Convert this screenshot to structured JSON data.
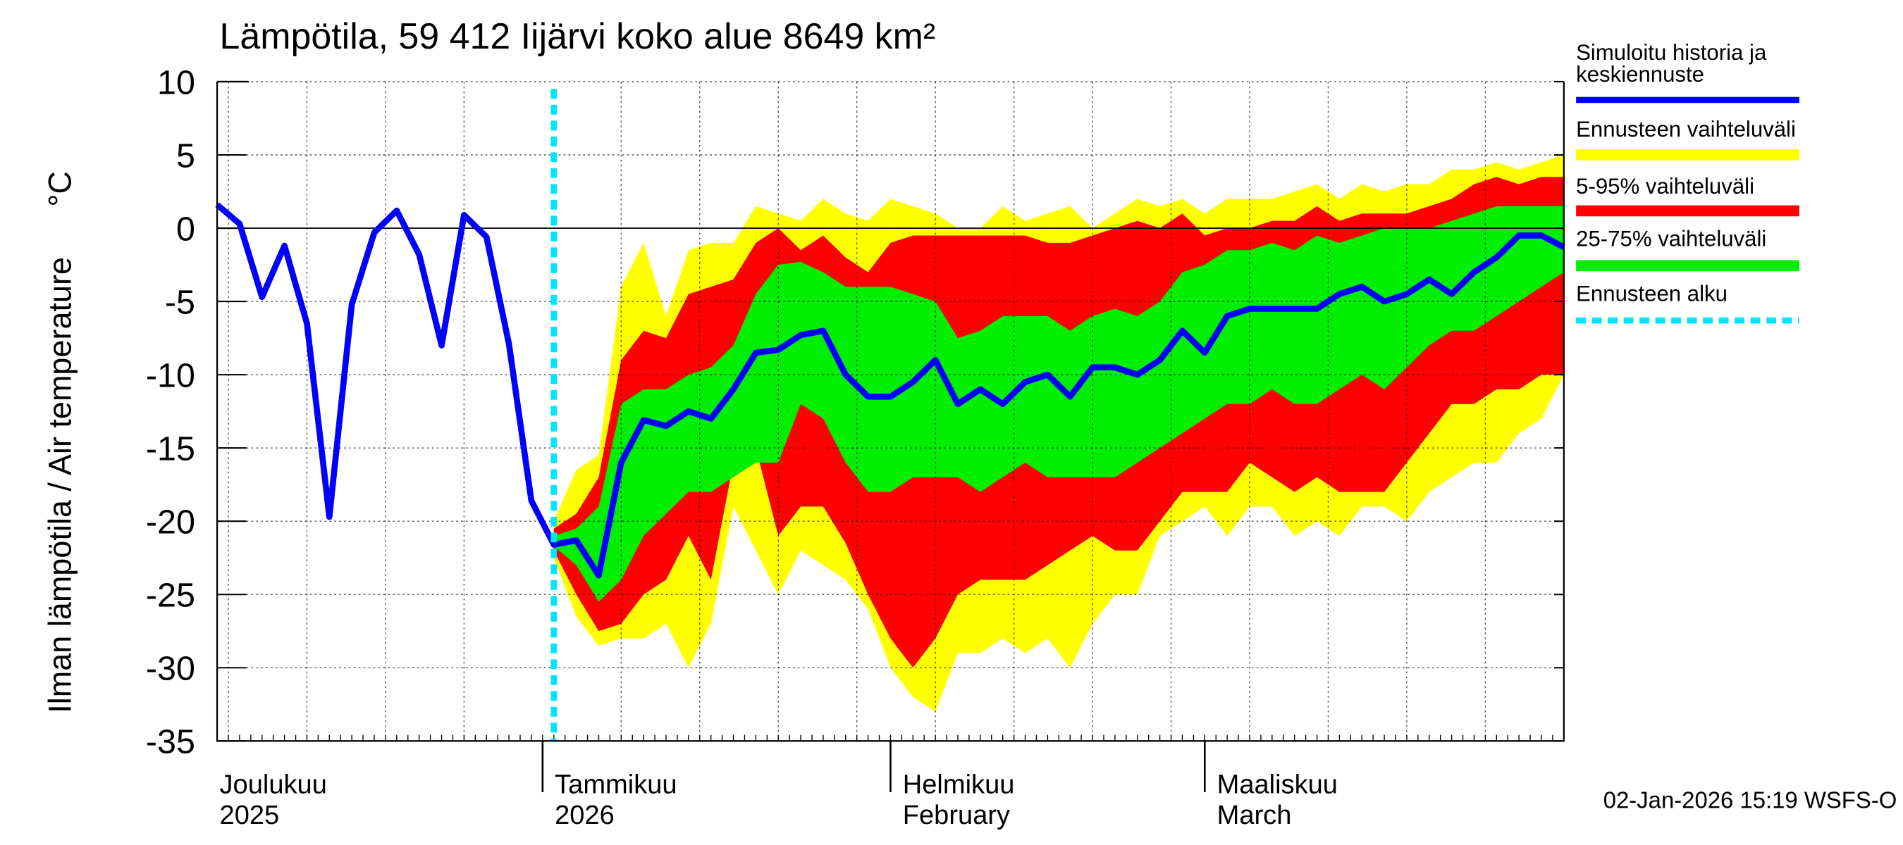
{
  "chart_data": {
    "type": "line",
    "title": "Lämpötila, 59 412 Iijärvi koko alue 8649 km²",
    "ylabel": "Ilman lämpötila / Air temperature",
    "yunit": "°C",
    "x": [
      "2025-12-03",
      "2025-12-05",
      "2025-12-07",
      "2025-12-09",
      "2025-12-11",
      "2025-12-13",
      "2025-12-15",
      "2025-12-17",
      "2025-12-19",
      "2025-12-21",
      "2025-12-23",
      "2025-12-25",
      "2025-12-27",
      "2025-12-29",
      "2025-12-31",
      "2026-01-02",
      "2026-01-04",
      "2026-01-06",
      "2026-01-08",
      "2026-01-10",
      "2026-01-12",
      "2026-01-14",
      "2026-01-16",
      "2026-01-18",
      "2026-01-20",
      "2026-01-22",
      "2026-01-24",
      "2026-01-26",
      "2026-01-28",
      "2026-01-30",
      "2026-02-01",
      "2026-02-03",
      "2026-02-05",
      "2026-02-07",
      "2026-02-09",
      "2026-02-11",
      "2026-02-13",
      "2026-02-15",
      "2026-02-17",
      "2026-02-19",
      "2026-02-21",
      "2026-02-23",
      "2026-02-25",
      "2026-02-27",
      "2026-03-01",
      "2026-03-03",
      "2026-03-05",
      "2026-03-07",
      "2026-03-09",
      "2026-03-11",
      "2026-03-13",
      "2026-03-15",
      "2026-03-17",
      "2026-03-19",
      "2026-03-21",
      "2026-03-23",
      "2026-03-25",
      "2026-03-27",
      "2026-03-29",
      "2026-03-31",
      "2026-04-02"
    ],
    "xlim": [
      "2025-12-03",
      "2026-04-02"
    ],
    "ylim": [
      -35,
      10
    ],
    "yticks": [
      -35,
      -30,
      -25,
      -20,
      -15,
      -10,
      -5,
      0,
      5,
      10
    ],
    "grid": true,
    "xgrid": [
      "2025-12-04",
      "2025-12-11",
      "2025-12-18",
      "2025-12-25",
      "2026-01-08",
      "2026-01-15",
      "2026-01-22",
      "2026-01-29",
      "2026-02-05",
      "2026-02-12",
      "2026-02-19",
      "2026-02-26",
      "2026-03-05",
      "2026-03-12",
      "2026-03-19",
      "2026-03-26"
    ],
    "month_labels": [
      {
        "value": "2025-12-01",
        "label": [
          "Joulukuu",
          "2025"
        ]
      },
      {
        "value": "2026-01-01",
        "label": [
          "Tammikuu",
          "2026"
        ]
      },
      {
        "value": "2026-02-01",
        "label": [
          "Helmikuu",
          "February"
        ]
      },
      {
        "value": "2026-03-01",
        "label": [
          "Maaliskuu",
          "March"
        ]
      }
    ],
    "series": [
      {
        "name": "Simuloitu historia ja\nkeskiennuste",
        "color": "#0000ff",
        "style": "line",
        "values": [
          1.6,
          0.3,
          -4.7,
          -1.2,
          -6.5,
          -19.7,
          -5.2,
          -0.3,
          1.2,
          -1.8,
          -8,
          0.9,
          -0.6,
          -7.9,
          -18.6,
          -21.6,
          -21.3,
          -23.7,
          -16,
          -13.1,
          -13.5,
          -12.5,
          -13,
          -11,
          -8.5,
          -8.3,
          -7.3,
          -7,
          -10,
          -11.5,
          -11.5,
          -10.5,
          -9,
          -12,
          -11,
          -12,
          -10.5,
          -10,
          -11.5,
          -9.5,
          -9.5,
          -10,
          -9,
          -7,
          -8.5,
          -6,
          -5.5,
          -5.5,
          -5.5,
          -5.5,
          -4.5,
          -4,
          -5,
          -4.5,
          -3.5,
          -4.5,
          -3,
          -2,
          -0.5,
          -0.5,
          -1.3
        ]
      },
      {
        "name": "Ennusteen vaihteluväli",
        "color": "#ffff00",
        "style": "band",
        "low": [
          null,
          null,
          null,
          null,
          null,
          null,
          null,
          null,
          null,
          null,
          null,
          null,
          null,
          null,
          null,
          -22.5,
          -26.5,
          -28.5,
          -28,
          -28,
          -27,
          -30,
          -27,
          -19,
          -22,
          -25,
          -22,
          -23,
          -24,
          -26,
          -30,
          -32,
          -33,
          -29,
          -29,
          -28,
          -29,
          -28,
          -30,
          -27,
          -25,
          -25,
          -21,
          -20,
          -19,
          -21,
          -19,
          -19,
          -21,
          -20,
          -21,
          -19,
          -19,
          -20,
          -18,
          -17,
          -16,
          -16,
          -14,
          -13,
          -10
        ],
        "high": [
          null,
          null,
          null,
          null,
          null,
          null,
          null,
          null,
          null,
          null,
          null,
          null,
          null,
          null,
          null,
          -20,
          -16.5,
          -15.5,
          -4,
          -1,
          -6,
          -1.5,
          -1,
          -1,
          1.5,
          1,
          0.5,
          2,
          1,
          0.5,
          2,
          1.5,
          1,
          0,
          0,
          1.5,
          0.5,
          1,
          1.5,
          0,
          1,
          2,
          1.5,
          2,
          1,
          2,
          2,
          2,
          2.5,
          3,
          2,
          3,
          2.5,
          3,
          3,
          4,
          4,
          4.5,
          4,
          4.5,
          5
        ]
      },
      {
        "name": "5-95% vaihteluväli",
        "color": "#ff0000",
        "style": "band",
        "low": [
          null,
          null,
          null,
          null,
          null,
          null,
          null,
          null,
          null,
          null,
          null,
          null,
          null,
          null,
          null,
          -22,
          -25,
          -27.5,
          -27,
          -25,
          -24,
          -21,
          -24,
          -16,
          -15,
          -21,
          -19,
          -19,
          -21.5,
          -25,
          -28,
          -30,
          -28,
          -25,
          -24,
          -24,
          -24,
          -23,
          -22,
          -21,
          -22,
          -22,
          -20,
          -18,
          -18,
          -18,
          -16,
          -17,
          -18,
          -17,
          -18,
          -18,
          -18,
          -16,
          -14,
          -12,
          -12,
          -11,
          -11,
          -10,
          -10
        ],
        "high": [
          null,
          null,
          null,
          null,
          null,
          null,
          null,
          null,
          null,
          null,
          null,
          null,
          null,
          null,
          null,
          -20.5,
          -19.5,
          -17,
          -9,
          -7,
          -7.5,
          -4.5,
          -4,
          -3.5,
          -1,
          0,
          -1.5,
          -0.5,
          -2,
          -3,
          -1,
          -0.5,
          -0.5,
          -0.5,
          -0.5,
          -0.5,
          -0.5,
          -1,
          -1,
          -0.5,
          0,
          0.5,
          0,
          1,
          -0.5,
          0,
          0,
          0.5,
          0.5,
          1.5,
          0.5,
          1,
          1,
          1,
          1.5,
          2,
          3,
          3.5,
          3,
          3.5,
          3.5
        ]
      },
      {
        "name": "25-75% vaihteluväli",
        "color": "#00ee00",
        "style": "band",
        "low": [
          null,
          null,
          null,
          null,
          null,
          null,
          null,
          null,
          null,
          null,
          null,
          null,
          null,
          null,
          null,
          -21.7,
          -23,
          -25.5,
          -24,
          -21,
          -19.5,
          -18,
          -18,
          -17,
          -16,
          -16,
          -12,
          -13,
          -16,
          -18,
          -18,
          -17,
          -17,
          -17,
          -18,
          -17,
          -16,
          -17,
          -17,
          -17,
          -17,
          -16,
          -15,
          -14,
          -13,
          -12,
          -12,
          -11,
          -12,
          -12,
          -11,
          -10,
          -11,
          -9.5,
          -8,
          -7,
          -7,
          -6,
          -5,
          -4,
          -3
        ],
        "high": [
          null,
          null,
          null,
          null,
          null,
          null,
          null,
          null,
          null,
          null,
          null,
          null,
          null,
          null,
          null,
          -21,
          -20.5,
          -19,
          -12,
          -11,
          -11,
          -10,
          -9.5,
          -8,
          -4.5,
          -2.5,
          -2.3,
          -3,
          -4,
          -4,
          -4,
          -4.5,
          -5,
          -7.5,
          -7,
          -6,
          -6,
          -6,
          -7,
          -6,
          -5.5,
          -6,
          -5,
          -3,
          -2.5,
          -1.5,
          -1.5,
          -1,
          -1.5,
          -0.5,
          -1,
          -0.5,
          0,
          0,
          0,
          0.5,
          1,
          1.5,
          1.5,
          1.5,
          1.5
        ]
      }
    ],
    "forecast_start": {
      "name": "Ennusteen alku",
      "color": "#00e5ff",
      "x": "2026-01-02"
    },
    "footer": "02-Jan-2026 15:19 WSFS-O"
  }
}
